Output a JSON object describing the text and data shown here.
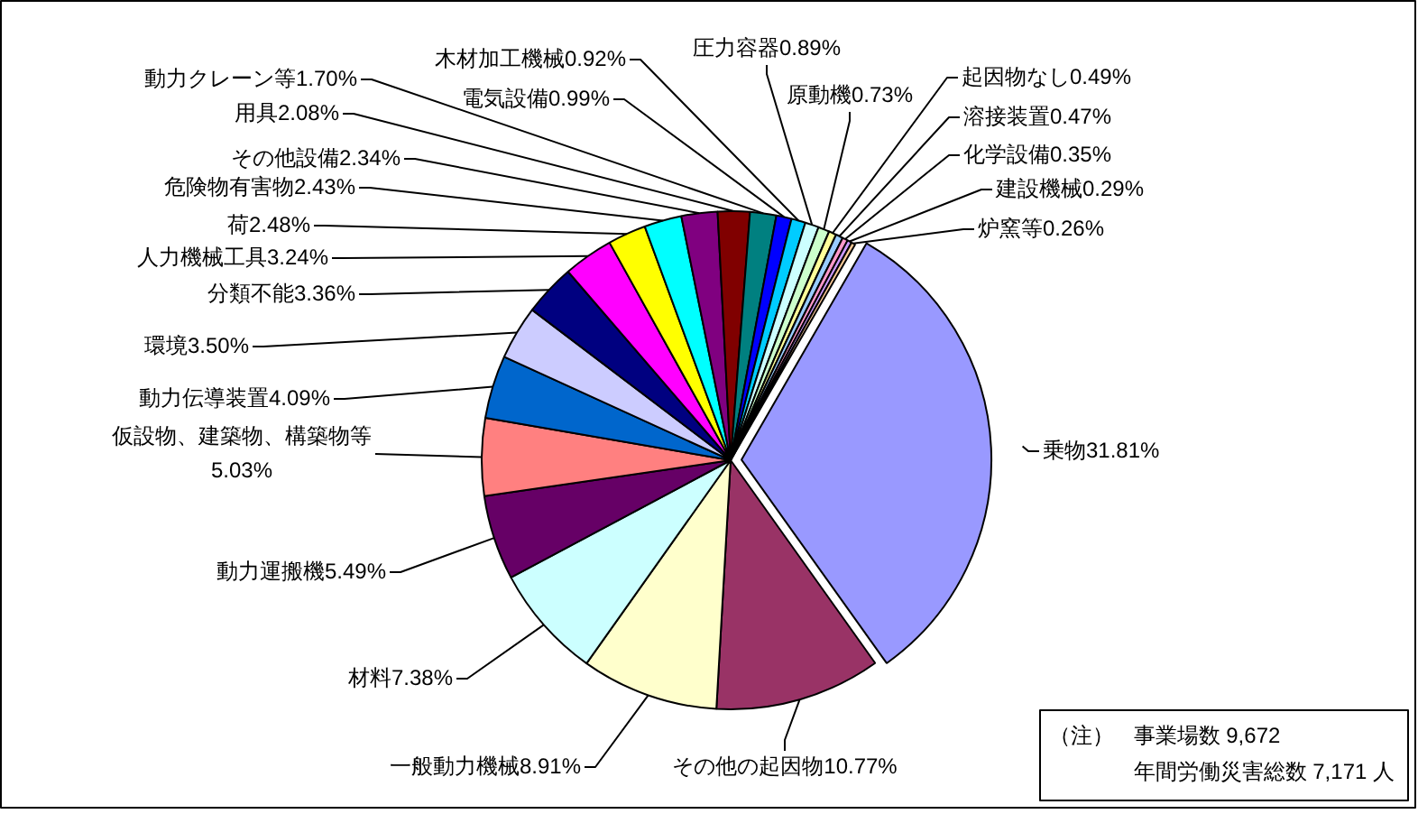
{
  "chart_data": {
    "type": "pie",
    "categories": [
      "乗物",
      "その他の起因物",
      "一般動力機械",
      "材料",
      "動力運搬機",
      "仮設物、建築物、構築物等",
      "動力伝導装置",
      "環境",
      "分類不能",
      "人力機械工具",
      "荷",
      "危険物有害物",
      "その他設備",
      "用具",
      "動力クレーン等",
      "電気設備",
      "木材加工機械",
      "圧力容器",
      "原動機",
      "起因物なし",
      "溶接装置",
      "化学設備",
      "建設機械",
      "炉窯等"
    ],
    "values": [
      31.81,
      10.77,
      8.91,
      7.38,
      5.49,
      5.03,
      4.09,
      3.5,
      3.36,
      3.24,
      2.48,
      2.43,
      2.34,
      2.08,
      1.7,
      0.99,
      0.92,
      0.89,
      0.73,
      0.49,
      0.47,
      0.35,
      0.29,
      0.26
    ],
    "colors": [
      "#9999ff",
      "#993366",
      "#ffffcc",
      "#ccffff",
      "#660066",
      "#ff8080",
      "#0066cc",
      "#ccccff",
      "#000080",
      "#ff00ff",
      "#ffff00",
      "#00ffff",
      "#800080",
      "#800000",
      "#008080",
      "#0000ff",
      "#00ccff",
      "#ccffff",
      "#ccffcc",
      "#ffff99",
      "#99ccff",
      "#ff99cc",
      "#cc99ff",
      "#ffcc99"
    ],
    "value_labels": [
      "31.81%",
      "10.77%",
      "8.91%",
      "7.38%",
      "5.49%",
      "5.03%",
      "4.09%",
      "3.50%",
      "3.36%",
      "3.24%",
      "2.48%",
      "2.43%",
      "2.34%",
      "2.08%",
      "1.70%",
      "0.99%",
      "0.92%",
      "0.89%",
      "0.73%",
      "0.49%",
      "0.47%",
      "0.35%",
      "0.29%",
      "0.26%"
    ],
    "annotations": [
      "（注）",
      "事業場数 9,672",
      "年間労働災害総数 7,171 人"
    ],
    "legend": false
  }
}
